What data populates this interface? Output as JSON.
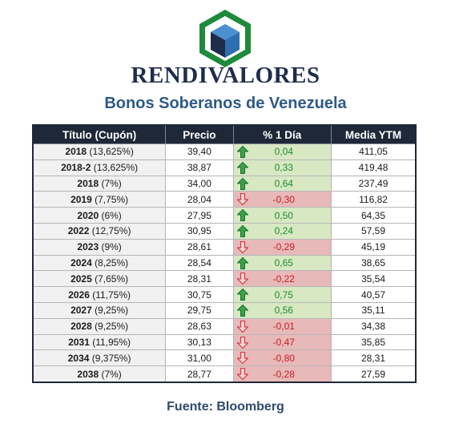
{
  "brand": "RENDIVALORES",
  "subtitle": "Bonos Soberanos de Venezuela",
  "headers": [
    "Título (Cupón)",
    "Precio",
    "% 1 Día",
    "Media YTM"
  ],
  "colors": {
    "header_bg": "#1f2838",
    "up_bg": "#d7e8c3",
    "down_bg": "#e8b9b9",
    "up_text": "#1e8f2a",
    "down_text": "#c81e1e",
    "subtitle": "#2e5a87",
    "logo_green": "#1e8a3c",
    "logo_blue": "#2e6fb0"
  },
  "rows": [
    {
      "year": "2018",
      "coupon": " (13,625%)",
      "price": "39,40",
      "change": "0,04",
      "dir": "up",
      "ytm": "411,05"
    },
    {
      "year": "2018-2",
      "coupon": " (13,625%)",
      "price": "38,87",
      "change": "0,33",
      "dir": "up",
      "ytm": "419,48"
    },
    {
      "year": "2018",
      "coupon": " (7%)",
      "price": "34,00",
      "change": "0,64",
      "dir": "up",
      "ytm": "237,49"
    },
    {
      "year": "2019",
      "coupon": " (7,75%)",
      "price": "28,04",
      "change": "-0,30",
      "dir": "down",
      "ytm": "116,82"
    },
    {
      "year": "2020",
      "coupon": " (6%)",
      "price": "27,95",
      "change": "0,50",
      "dir": "up",
      "ytm": "64,35"
    },
    {
      "year": "2022",
      "coupon": " (12,75%)",
      "price": "30,95",
      "change": "0,24",
      "dir": "up",
      "ytm": "57,59"
    },
    {
      "year": "2023",
      "coupon": " (9%)",
      "price": "28,61",
      "change": "-0,29",
      "dir": "down",
      "ytm": "45,19"
    },
    {
      "year": "2024",
      "coupon": " (8,25%)",
      "price": "28,54",
      "change": "0,65",
      "dir": "up",
      "ytm": "38,65"
    },
    {
      "year": "2025",
      "coupon": " (7,65%)",
      "price": "28,31",
      "change": "-0,22",
      "dir": "down",
      "ytm": "35,54"
    },
    {
      "year": "2026",
      "coupon": " (11,75%)",
      "price": "30,75",
      "change": "0,75",
      "dir": "up",
      "ytm": "40,57"
    },
    {
      "year": "2027",
      "coupon": " (9,25%)",
      "price": "29,75",
      "change": "0,56",
      "dir": "up",
      "ytm": "35,11"
    },
    {
      "year": "2028",
      "coupon": " (9,25%)",
      "price": "28,63",
      "change": "-0,01",
      "dir": "down",
      "ytm": "34,38"
    },
    {
      "year": "2031",
      "coupon": " (11,95%)",
      "price": "30,13",
      "change": "-0,47",
      "dir": "down",
      "ytm": "35,85"
    },
    {
      "year": "2034",
      "coupon": " (9,375%)",
      "price": "31,00",
      "change": "-0,80",
      "dir": "down",
      "ytm": "28,31"
    },
    {
      "year": "2038",
      "coupon": " (7%)",
      "price": "28,77",
      "change": "-0,28",
      "dir": "down",
      "ytm": "27,59"
    }
  ],
  "source": "Fuente: Bloomberg"
}
